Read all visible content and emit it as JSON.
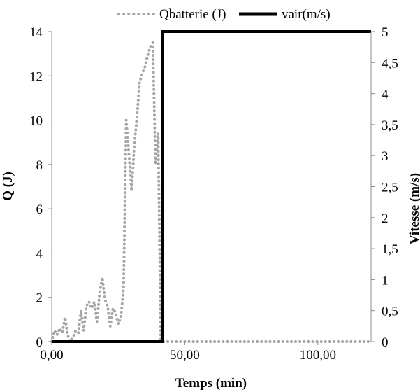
{
  "chart_data": {
    "type": "line",
    "title": "",
    "xlabel": "Temps (min)",
    "ylabel_left": "Q (J)",
    "ylabel_right": "Vitesse (m/s)",
    "xlim": [
      0,
      120
    ],
    "ylim_left": [
      0,
      14
    ],
    "ylim_right": [
      0,
      5
    ],
    "x_ticks": [
      {
        "value": 0,
        "label": "0,00"
      },
      {
        "value": 50,
        "label": "50,00"
      },
      {
        "value": 100,
        "label": "100,00"
      }
    ],
    "y_ticks_left": [
      {
        "value": 0,
        "label": "0"
      },
      {
        "value": 2,
        "label": "2"
      },
      {
        "value": 4,
        "label": "4"
      },
      {
        "value": 6,
        "label": "6"
      },
      {
        "value": 8,
        "label": "8"
      },
      {
        "value": 10,
        "label": "10"
      },
      {
        "value": 12,
        "label": "12"
      },
      {
        "value": 14,
        "label": "14"
      }
    ],
    "y_ticks_right": [
      {
        "value": 0,
        "label": "0"
      },
      {
        "value": 0.5,
        "label": "0,5"
      },
      {
        "value": 1,
        "label": "1"
      },
      {
        "value": 1.5,
        "label": "1,5"
      },
      {
        "value": 2,
        "label": "2"
      },
      {
        "value": 2.5,
        "label": "2,5"
      },
      {
        "value": 3,
        "label": "3"
      },
      {
        "value": 3.5,
        "label": "3,5"
      },
      {
        "value": 4,
        "label": "4"
      },
      {
        "value": 4.5,
        "label": "4,5"
      },
      {
        "value": 5,
        "label": "5"
      }
    ],
    "grid": false,
    "legend_position": "top",
    "series": [
      {
        "name": "Qbatterie (J)",
        "axis": "left",
        "style": "dotted",
        "color": "#a6a6a6",
        "x": [
          0,
          1,
          2,
          3,
          4,
          5,
          6,
          7,
          8,
          9,
          10,
          11,
          12,
          13,
          14,
          15,
          16,
          17,
          18,
          19,
          20,
          21,
          22,
          23,
          24,
          25,
          26,
          27,
          28,
          29,
          30,
          31,
          32,
          33,
          34,
          35,
          36,
          37,
          38,
          39,
          40,
          41,
          42
        ],
        "y": [
          0,
          0.5,
          0.3,
          0.6,
          0.4,
          1.1,
          0.3,
          0,
          0.2,
          0.5,
          0.4,
          1.4,
          0.5,
          1.6,
          1.8,
          1.5,
          1.8,
          0.9,
          2.2,
          2.9,
          1.9,
          1.6,
          0.7,
          1.5,
          1.3,
          0.8,
          1.1,
          2.4,
          10,
          8.5,
          6.8,
          8.8,
          10.1,
          11.7,
          12.1,
          12.4,
          12.9,
          13.3,
          13.5,
          8,
          9.4,
          0,
          0
        ]
      },
      {
        "name": "Qbatterie (J)",
        "axis": "left",
        "style": "dotted",
        "color": "#a6a6a6",
        "x": [
          42,
          50,
          60,
          70,
          80,
          90,
          100,
          110,
          120
        ],
        "y": [
          0,
          0,
          0,
          0,
          0,
          0,
          0,
          0,
          0
        ]
      },
      {
        "name": "vair(m/s)",
        "axis": "right",
        "style": "solid",
        "color": "#000000",
        "x": [
          0,
          41.5,
          41.5,
          120
        ],
        "y": [
          0,
          0,
          5,
          5
        ]
      }
    ]
  }
}
